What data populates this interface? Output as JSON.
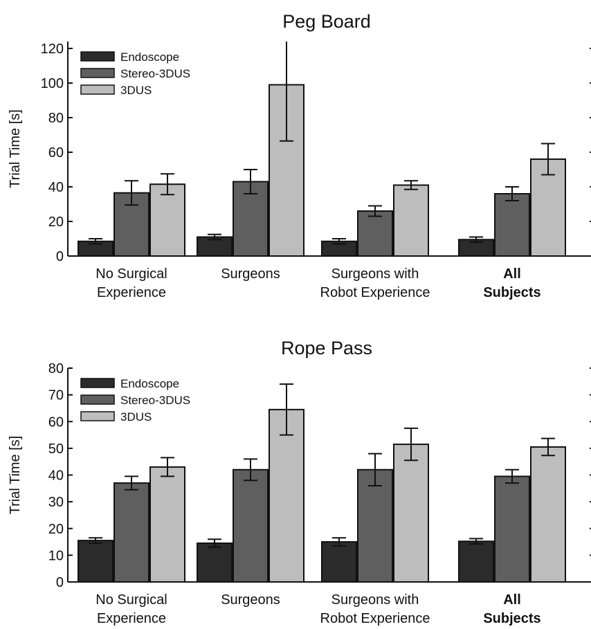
{
  "colors": {
    "Endoscope": "#2b2b2b",
    "Stereo-3DUS": "#5f5f5f",
    "3DUS": "#bdbdbd",
    "axis": "#111111"
  },
  "chart_data": [
    {
      "type": "bar",
      "title": "Peg Board",
      "ylabel": "Trial Time [s]",
      "xlabel": "",
      "ylim": [
        0,
        124
      ],
      "yticks": [
        0,
        20,
        40,
        60,
        80,
        100,
        120
      ],
      "grid": false,
      "legend_position": "top-left",
      "categories": [
        [
          "No Surgical",
          "Experience"
        ],
        [
          "Surgeons"
        ],
        [
          "Surgeons with",
          "Robot Experience"
        ],
        [
          "All",
          "Subjects"
        ]
      ],
      "bold_categories": [
        3
      ],
      "series": [
        {
          "name": "Endoscope",
          "values": [
            8.5,
            11,
            8.5,
            9.5
          ],
          "errors": [
            1.5,
            1.5,
            1.5,
            1.5
          ]
        },
        {
          "name": "Stereo-3DUS",
          "values": [
            36.5,
            43,
            26,
            36
          ],
          "errors": [
            7,
            7,
            3,
            4
          ]
        },
        {
          "name": "3DUS",
          "values": [
            41.5,
            99,
            41,
            56
          ],
          "errors": [
            6,
            32.5,
            2.5,
            9
          ]
        }
      ]
    },
    {
      "type": "bar",
      "title": "Rope Pass",
      "ylabel": "Trial Time [s]",
      "xlabel": "",
      "ylim": [
        0,
        80
      ],
      "yticks": [
        0,
        10,
        20,
        30,
        40,
        50,
        60,
        70,
        80
      ],
      "grid": false,
      "legend_position": "top-left",
      "categories": [
        [
          "No Surgical",
          "Experience"
        ],
        [
          "Surgeons"
        ],
        [
          "Surgeons with",
          "Robot Experience"
        ],
        [
          "All",
          "Subjects"
        ]
      ],
      "bold_categories": [
        3
      ],
      "series": [
        {
          "name": "Endoscope",
          "values": [
            15.5,
            14.5,
            15,
            15.2
          ],
          "errors": [
            1,
            1.5,
            1.5,
            1
          ]
        },
        {
          "name": "Stereo-3DUS",
          "values": [
            37,
            42,
            42,
            39.5
          ],
          "errors": [
            2.5,
            4,
            6,
            2.5
          ]
        },
        {
          "name": "3DUS",
          "values": [
            43,
            64.5,
            51.5,
            50.5
          ],
          "errors": [
            3.5,
            9.5,
            6,
            3.2
          ]
        }
      ]
    }
  ]
}
